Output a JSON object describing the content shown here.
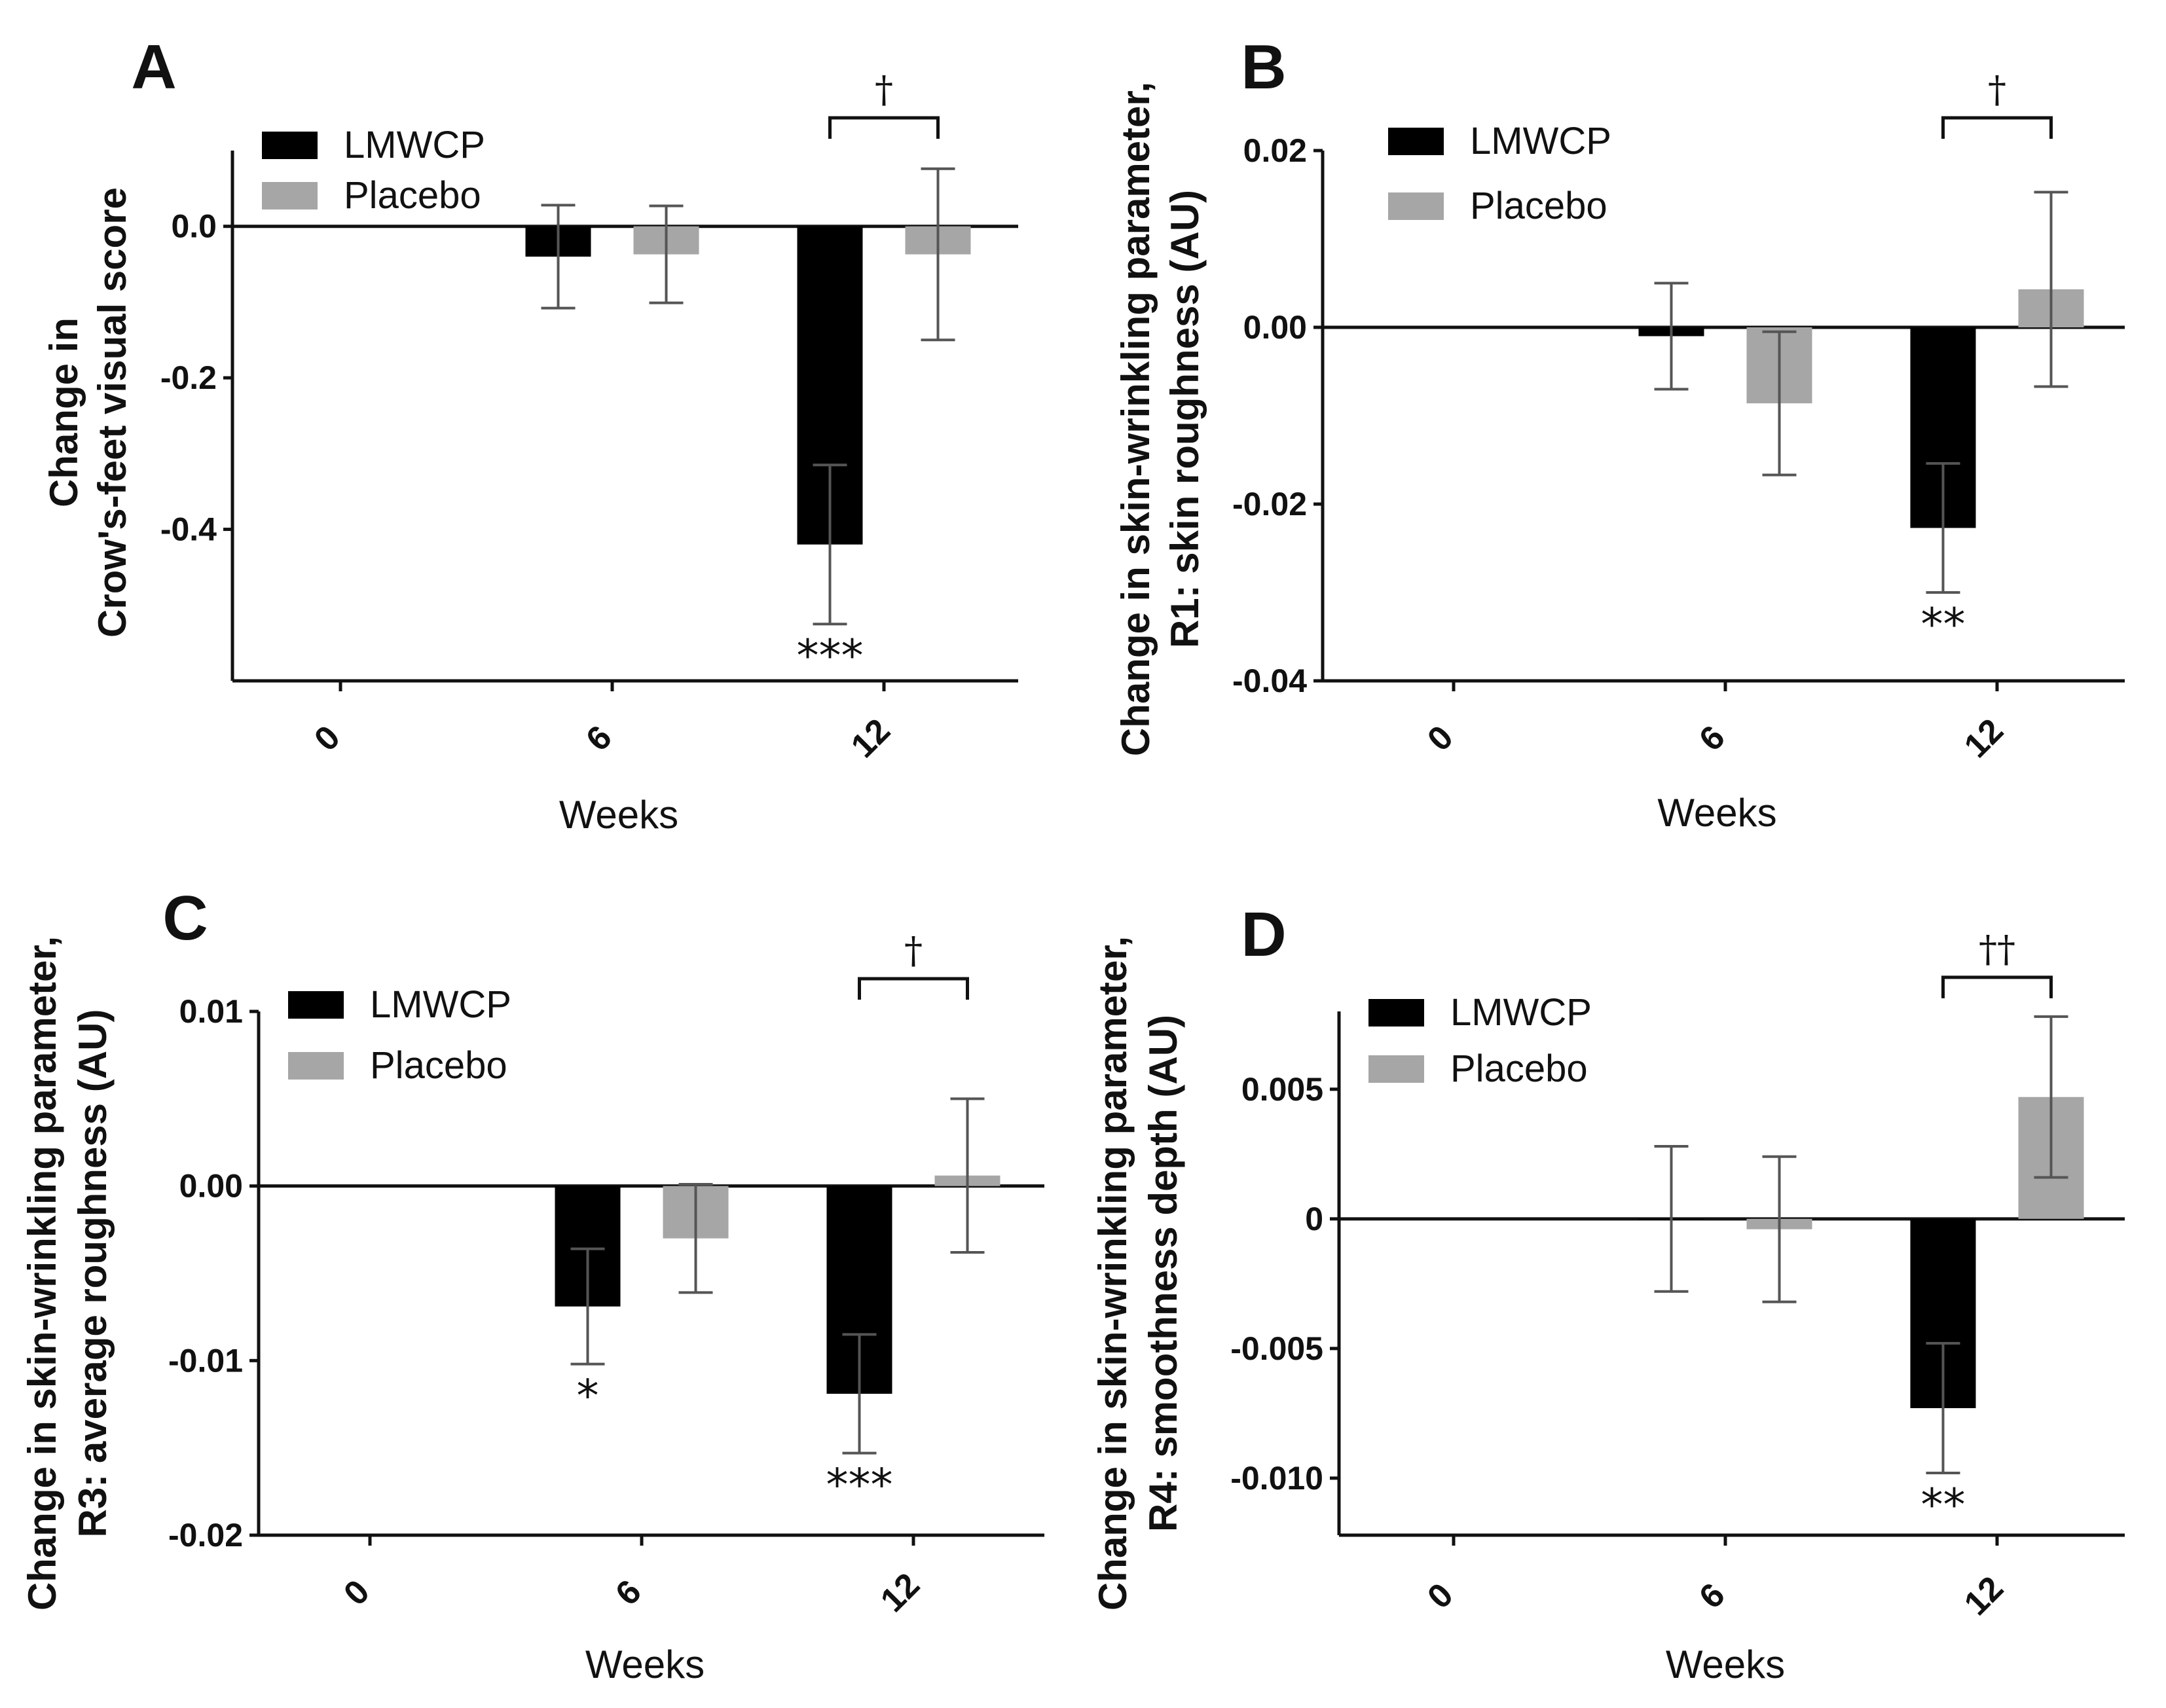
{
  "chart_data": [
    {
      "type": "bar",
      "panel": "A",
      "title": "",
      "xlabel": "Weeks",
      "ylabel_lines": [
        "Change in",
        "Crow's-feet visual score"
      ],
      "categories": [
        "0",
        "6",
        "12"
      ],
      "ylim": [
        -0.6,
        0.1
      ],
      "yticks": [
        0.0,
        -0.2,
        -0.4
      ],
      "ytick_labels": [
        "0.0",
        "-0.2",
        "-0.4"
      ],
      "series": [
        {
          "name": "LMWCP",
          "color": "#000000",
          "values": [
            null,
            -0.04,
            -0.42
          ],
          "errors": [
            null,
            0.068,
            0.105
          ],
          "sig": [
            null,
            "",
            "***"
          ]
        },
        {
          "name": "Placebo",
          "color": "#a6a6a6",
          "values": [
            null,
            -0.037,
            -0.037
          ],
          "errors": [
            null,
            0.064,
            0.113
          ],
          "sig": [
            null,
            "",
            ""
          ]
        }
      ],
      "bracket": {
        "category": "12",
        "label": "†"
      }
    },
    {
      "type": "bar",
      "panel": "B",
      "title": "",
      "xlabel": "Weeks",
      "ylabel_lines": [
        "Change in skin-wrinkling parameter,",
        "R1: skin roughness (AU)"
      ],
      "categories": [
        "0",
        "6",
        "12"
      ],
      "ylim": [
        -0.04,
        0.02
      ],
      "yticks": [
        0.02,
        0.0,
        -0.02,
        -0.04
      ],
      "ytick_labels": [
        "0.02",
        "0.00",
        "-0.02",
        "-0.04"
      ],
      "series": [
        {
          "name": "LMWCP",
          "color": "#000000",
          "values": [
            null,
            -0.001,
            -0.0227
          ],
          "errors": [
            null,
            0.006,
            0.0073
          ],
          "sig": [
            null,
            "",
            "**"
          ]
        },
        {
          "name": "Placebo",
          "color": "#a6a6a6",
          "values": [
            null,
            -0.0086,
            0.0043
          ],
          "errors": [
            null,
            0.0081,
            0.011
          ],
          "sig": [
            null,
            "",
            ""
          ]
        }
      ],
      "bracket": {
        "category": "12",
        "label": "†"
      }
    },
    {
      "type": "bar",
      "panel": "C",
      "title": "",
      "xlabel": "Weeks",
      "ylabel_lines": [
        "Change in skin-wrinkling parameter,",
        "R3: average roughness (AU)"
      ],
      "categories": [
        "0",
        "6",
        "12"
      ],
      "ylim": [
        -0.02,
        0.01
      ],
      "yticks": [
        0.01,
        0.0,
        -0.01,
        -0.02
      ],
      "ytick_labels": [
        "0.01",
        "0.00",
        "-0.01",
        "-0.02"
      ],
      "series": [
        {
          "name": "LMWCP",
          "color": "#000000",
          "values": [
            null,
            -0.0069,
            -0.0119
          ],
          "errors": [
            null,
            0.0033,
            0.0034
          ],
          "sig": [
            null,
            "*",
            "***"
          ]
        },
        {
          "name": "Placebo",
          "color": "#a6a6a6",
          "values": [
            null,
            -0.003,
            0.0006
          ],
          "errors": [
            null,
            0.0031,
            0.0044
          ],
          "sig": [
            null,
            "",
            ""
          ]
        }
      ],
      "bracket": {
        "category": "12",
        "label": "†"
      }
    },
    {
      "type": "bar",
      "panel": "D",
      "title": "",
      "xlabel": "Weeks",
      "ylabel_lines": [
        "Change in skin-wrinkling parameter,",
        "R4: smoothness depth (AU)"
      ],
      "categories": [
        "0",
        "6",
        "12"
      ],
      "ylim": [
        -0.0122,
        0.008
      ],
      "yticks": [
        0.005,
        0.0,
        -0.005,
        -0.01
      ],
      "ytick_labels": [
        "0.005",
        "0",
        "-0.005",
        "-0.010"
      ],
      "series": [
        {
          "name": "LMWCP",
          "color": "#000000",
          "values": [
            null,
            0.0,
            -0.0073
          ],
          "errors": [
            null,
            0.0028,
            0.0025
          ],
          "sig": [
            null,
            "",
            "**"
          ]
        },
        {
          "name": "Placebo",
          "color": "#a6a6a6",
          "values": [
            null,
            -0.0004,
            0.0047
          ],
          "errors": [
            null,
            0.0028,
            0.0031
          ],
          "sig": [
            null,
            "",
            ""
          ]
        }
      ],
      "bracket": {
        "category": "12",
        "label": "††"
      }
    }
  ]
}
